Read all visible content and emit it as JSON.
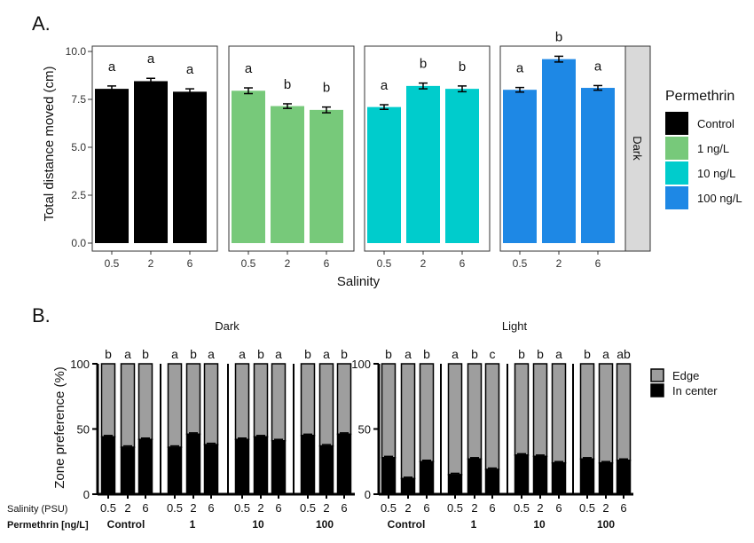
{
  "chart_data": [
    {
      "id": "A",
      "panel_label": "A.",
      "type": "bar",
      "ylabel": "Total distance moved (cm)",
      "xlabel": "Salinity",
      "ylim": [
        0,
        10
      ],
      "yticks": [
        "0.0",
        "2.5",
        "5.0",
        "7.5",
        "10.0"
      ],
      "categories": [
        "0.5",
        "2",
        "6"
      ],
      "strip_label": "Dark",
      "legend": {
        "title": "Permethrin",
        "items": [
          {
            "label": "Control",
            "color": "#000000"
          },
          {
            "label": "1 ng/L",
            "color": "#77c97a"
          },
          {
            "label": "10 ng/L",
            "color": "#00cccc"
          },
          {
            "label": "100 ng/L",
            "color": "#1e88e5"
          }
        ]
      },
      "series": [
        {
          "color": "#000000",
          "values": [
            8.05,
            8.45,
            7.9
          ],
          "errors": [
            0.15,
            0.15,
            0.15
          ],
          "letters": [
            "a",
            "a",
            "a"
          ]
        },
        {
          "color": "#77c97a",
          "values": [
            7.95,
            7.15,
            6.95
          ],
          "errors": [
            0.15,
            0.12,
            0.15
          ],
          "letters": [
            "a",
            "b",
            "b"
          ]
        },
        {
          "color": "#00cccc",
          "values": [
            7.1,
            8.2,
            8.05
          ],
          "errors": [
            0.12,
            0.15,
            0.15
          ],
          "letters": [
            "a",
            "b",
            "b"
          ]
        },
        {
          "color": "#1e88e5",
          "values": [
            8.0,
            9.6,
            8.1
          ],
          "errors": [
            0.12,
            0.15,
            0.12
          ],
          "letters": [
            "a",
            "b",
            "a"
          ]
        }
      ]
    },
    {
      "id": "B",
      "panel_label": "B.",
      "type": "bar",
      "stacked": true,
      "ylabel": "Zone preference (%)",
      "ylim": [
        0,
        100
      ],
      "yticks": [
        "0",
        "50",
        "100"
      ],
      "x_row_label": "Salinity (PSU)",
      "group_row_label": "Permethrin [ng/L]",
      "categories": [
        "0.5",
        "2",
        "6"
      ],
      "group_names": [
        "Control",
        "1",
        "10",
        "100"
      ],
      "legend": [
        {
          "label": "Edge",
          "color": "#9e9e9e"
        },
        {
          "label": "In center",
          "color": "#000000"
        }
      ],
      "panels": [
        {
          "title": "Dark",
          "in_center": [
            [
              44,
              36,
              42
            ],
            [
              36,
              46,
              38
            ],
            [
              42,
              44,
              41
            ],
            [
              45,
              37,
              46
            ]
          ],
          "letters": [
            [
              "b",
              "a",
              "b"
            ],
            [
              "a",
              "b",
              "a"
            ],
            [
              "a",
              "b",
              "a"
            ],
            [
              "b",
              "a",
              "b"
            ]
          ]
        },
        {
          "title": "Light",
          "in_center": [
            [
              28,
              12,
              25
            ],
            [
              15,
              27,
              19
            ],
            [
              30,
              29,
              24
            ],
            [
              27,
              24,
              26
            ]
          ],
          "letters": [
            [
              "b",
              "a",
              "b"
            ],
            [
              "a",
              "b",
              "c"
            ],
            [
              "b",
              "b",
              "a"
            ],
            [
              "b",
              "a",
              "ab"
            ]
          ]
        }
      ]
    }
  ]
}
